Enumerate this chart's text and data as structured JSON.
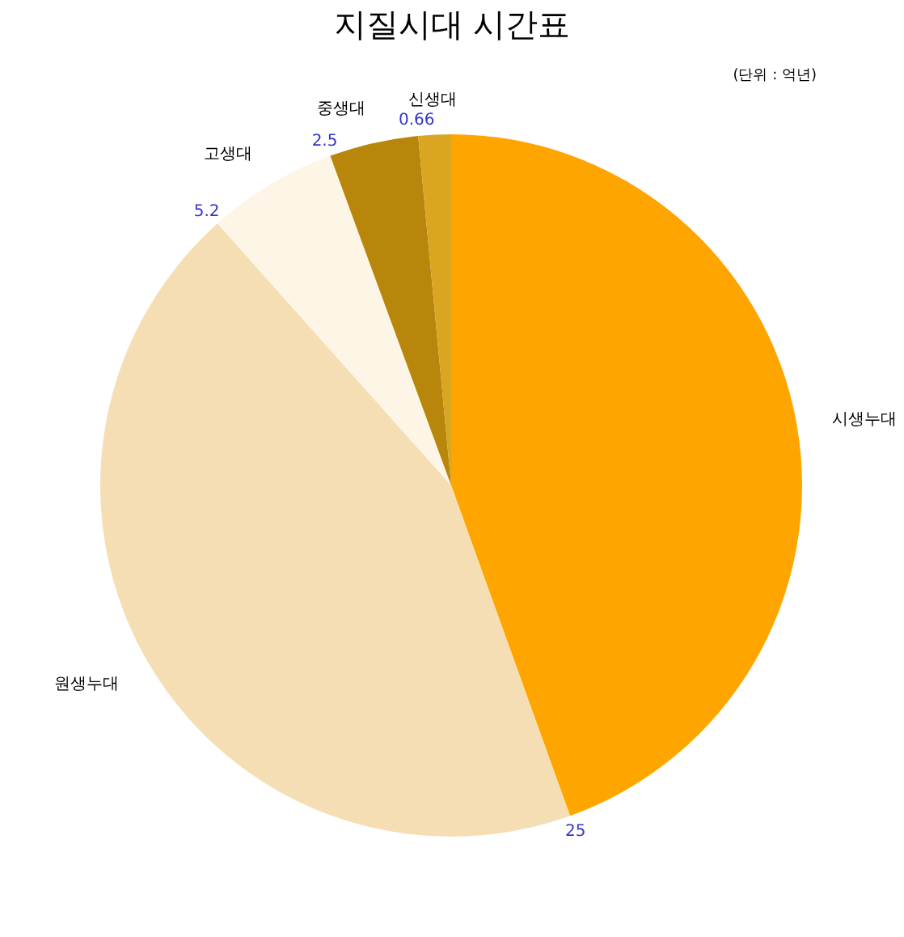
{
  "chart_data": {
    "type": "pie",
    "title": "지질시대 시간표",
    "categories": [
      "시생누대",
      "원생누대",
      "고생대",
      "중생대",
      "신생대"
    ],
    "values": [
      44.5,
      43.9,
      6.0,
      4.1,
      1.5
    ],
    "colors": [
      "#ffa500",
      "#f5deb3",
      "#fdf5e6",
      "#b8860b",
      "#daa520"
    ],
    "annotations": [
      "25",
      "5.2",
      "2.5",
      "0.66",
      "(단위 : 억년)"
    ]
  }
}
